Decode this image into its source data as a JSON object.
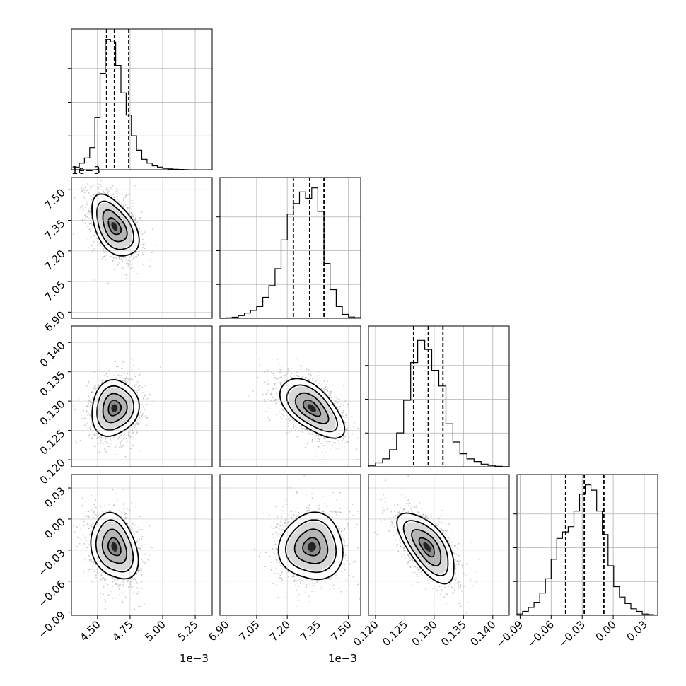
{
  "chart_data": {
    "type": "corner",
    "parameters": [
      {
        "index": 0,
        "range": [
          4.3,
          5.38
        ],
        "ticks": [
          4.5,
          4.75,
          5.0,
          5.25
        ],
        "tick_labels": [
          "4.50",
          "4.75",
          "5.00",
          "5.25"
        ],
        "offset_label": "1e−3",
        "quantiles": [
          4.57,
          4.63,
          4.74
        ],
        "mode": 4.62,
        "hist": {
          "bins": [
            4.32,
            4.36,
            4.4,
            4.44,
            4.48,
            4.52,
            4.56,
            4.6,
            4.64,
            4.68,
            4.72,
            4.76,
            4.8,
            4.84,
            4.88,
            4.92,
            4.96,
            5.0,
            5.04,
            5.08,
            5.12,
            5.16,
            5.2
          ],
          "heights": [
            0.02,
            0.05,
            0.09,
            0.17,
            0.4,
            0.74,
            1.0,
            0.98,
            0.8,
            0.59,
            0.42,
            0.26,
            0.15,
            0.08,
            0.05,
            0.03,
            0.02,
            0.01,
            0.006,
            0.003,
            0.002,
            0.001
          ],
          "ymax": 1.08
        }
      },
      {
        "index": 1,
        "range": [
          6.87,
          7.56
        ],
        "ticks": [
          6.9,
          7.05,
          7.2,
          7.35,
          7.5
        ],
        "tick_labels": [
          "6.90",
          "7.05",
          "7.20",
          "7.35",
          "7.50"
        ],
        "offset_label": "1e−3",
        "quantiles": [
          7.23,
          7.31,
          7.38
        ],
        "mode": 7.33,
        "hist": {
          "bins": [
            6.87,
            6.9,
            6.93,
            6.96,
            6.99,
            7.02,
            7.05,
            7.08,
            7.11,
            7.14,
            7.17,
            7.2,
            7.23,
            7.26,
            7.29,
            7.32,
            7.35,
            7.38,
            7.41,
            7.44,
            7.47,
            7.5,
            7.53,
            7.56
          ],
          "heights": [
            0,
            0.003,
            0.008,
            0.02,
            0.04,
            0.06,
            0.09,
            0.16,
            0.25,
            0.38,
            0.6,
            0.8,
            0.88,
            0.97,
            0.92,
            1.0,
            0.82,
            0.42,
            0.22,
            0.09,
            0.03,
            0.01,
            0.005
          ],
          "ymax": 1.08
        }
      },
      {
        "index": 2,
        "range": [
          0.1188,
          0.1428
        ],
        "ticks": [
          0.12,
          0.125,
          0.13,
          0.135,
          0.14
        ],
        "tick_labels": [
          "0.120",
          "0.125",
          "0.130",
          "0.135",
          "0.140"
        ],
        "offset_label": "",
        "quantiles": [
          0.1265,
          0.129,
          0.1315
        ],
        "mode": 0.129,
        "hist": {
          "bins": [
            0.1188,
            0.12,
            0.1212,
            0.1224,
            0.1236,
            0.1248,
            0.126,
            0.1272,
            0.1284,
            0.1296,
            0.1308,
            0.132,
            0.1332,
            0.1344,
            0.1356,
            0.1368,
            0.138,
            0.1392,
            0.1404,
            0.1416,
            0.1428
          ],
          "heights": [
            0.01,
            0.03,
            0.06,
            0.13,
            0.26,
            0.51,
            0.8,
            0.97,
            0.9,
            0.74,
            0.62,
            0.33,
            0.19,
            0.1,
            0.06,
            0.04,
            0.02,
            0.01,
            0.003,
            0.001
          ],
          "ymax": 1.08
        }
      },
      {
        "index": 3,
        "range": [
          -0.093,
          0.043
        ],
        "ticks": [
          -0.09,
          -0.06,
          -0.03,
          0.0,
          0.03
        ],
        "tick_labels": [
          "−0.09",
          "−0.06",
          "−0.03",
          "0.00",
          "0.03"
        ],
        "offset_label": "",
        "quantiles": [
          -0.046,
          -0.028,
          -0.009
        ],
        "mode": -0.026,
        "hist": {
          "bins": [
            -0.093,
            -0.0875,
            -0.082,
            -0.0765,
            -0.071,
            -0.0655,
            -0.06,
            -0.0545,
            -0.049,
            -0.0435,
            -0.038,
            -0.0325,
            -0.027,
            -0.0215,
            -0.016,
            -0.0105,
            -0.005,
            0.0005,
            0.006,
            0.0115,
            0.017,
            0.0225,
            0.028,
            0.0335,
            0.039,
            0.043
          ],
          "heights": [
            0.01,
            0.03,
            0.06,
            0.1,
            0.17,
            0.28,
            0.43,
            0.59,
            0.64,
            0.68,
            0.8,
            0.93,
            1.0,
            0.96,
            0.8,
            0.62,
            0.38,
            0.22,
            0.14,
            0.09,
            0.05,
            0.03,
            0.01,
            0.005,
            0.002
          ],
          "ymax": 1.08
        }
      }
    ],
    "pair_stats": [
      {
        "i": 1,
        "j": 0,
        "mean": [
          4.63,
          7.32
        ],
        "sd": [
          0.085,
          0.075
        ],
        "rho": -0.45
      },
      {
        "i": 2,
        "j": 0,
        "mean": [
          4.63,
          0.1288
        ],
        "sd": [
          0.085,
          0.0024
        ],
        "rho": 0.1
      },
      {
        "i": 2,
        "j": 1,
        "mean": [
          7.32,
          0.1288
        ],
        "sd": [
          0.075,
          0.0024
        ],
        "rho": -0.55
      },
      {
        "i": 3,
        "j": 0,
        "mean": [
          4.63,
          -0.027
        ],
        "sd": [
          0.085,
          0.016
        ],
        "rho": -0.25
      },
      {
        "i": 3,
        "j": 1,
        "mean": [
          7.32,
          -0.027
        ],
        "sd": [
          0.075,
          0.016
        ],
        "rho": 0.05
      },
      {
        "i": 3,
        "j": 2,
        "mean": [
          0.1288,
          -0.027
        ],
        "sd": [
          0.0024,
          0.016
        ],
        "rho": -0.62
      }
    ],
    "contour_levels_sigma": [
      0.5,
      1.0,
      1.5,
      2.0
    ],
    "grid": true
  },
  "colors": {
    "line": "#000000",
    "grid": "#b0b0b0",
    "scatter": "#999999"
  }
}
